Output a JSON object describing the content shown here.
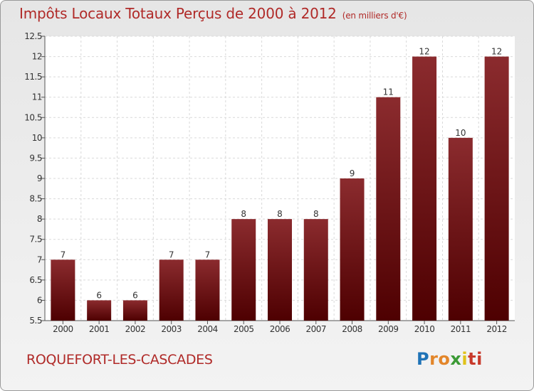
{
  "header": {
    "title": "Impôts Locaux Totaux Perçus de 2000 à 2012",
    "unit": "(en milliers d'€)"
  },
  "footer": {
    "commune": "ROQUEFORT-LES-CASCADES",
    "logo": [
      "P",
      "ro",
      "x",
      "i",
      "ti"
    ]
  },
  "colors": {
    "bar_top": "#8b2b2e",
    "bar_bottom": "#4e0001",
    "title": "#b02a28"
  },
  "chart_data": {
    "type": "bar",
    "title": "Impôts Locaux Totaux Perçus de 2000 à 2012",
    "xlabel": "",
    "ylabel": "",
    "categories": [
      "2000",
      "2001",
      "2002",
      "2003",
      "2004",
      "2005",
      "2006",
      "2007",
      "2008",
      "2009",
      "2010",
      "2011",
      "2012"
    ],
    "values": [
      7,
      6,
      6,
      7,
      7,
      8,
      8,
      8,
      9,
      11,
      12,
      10,
      12
    ],
    "ylim": [
      5.5,
      12.5
    ],
    "yticks": [
      5.5,
      6,
      6.5,
      7,
      7.5,
      8,
      8.5,
      9,
      9.5,
      10,
      10.5,
      11,
      11.5,
      12,
      12.5
    ],
    "ytick_labels": [
      "5.5",
      "6",
      "6.5",
      "7",
      "7.5",
      "8",
      "8.5",
      "9",
      "9.5",
      "10",
      "10.5",
      "11",
      "11.5",
      "12",
      "12.5"
    ],
    "grid": true,
    "legend": "none"
  }
}
